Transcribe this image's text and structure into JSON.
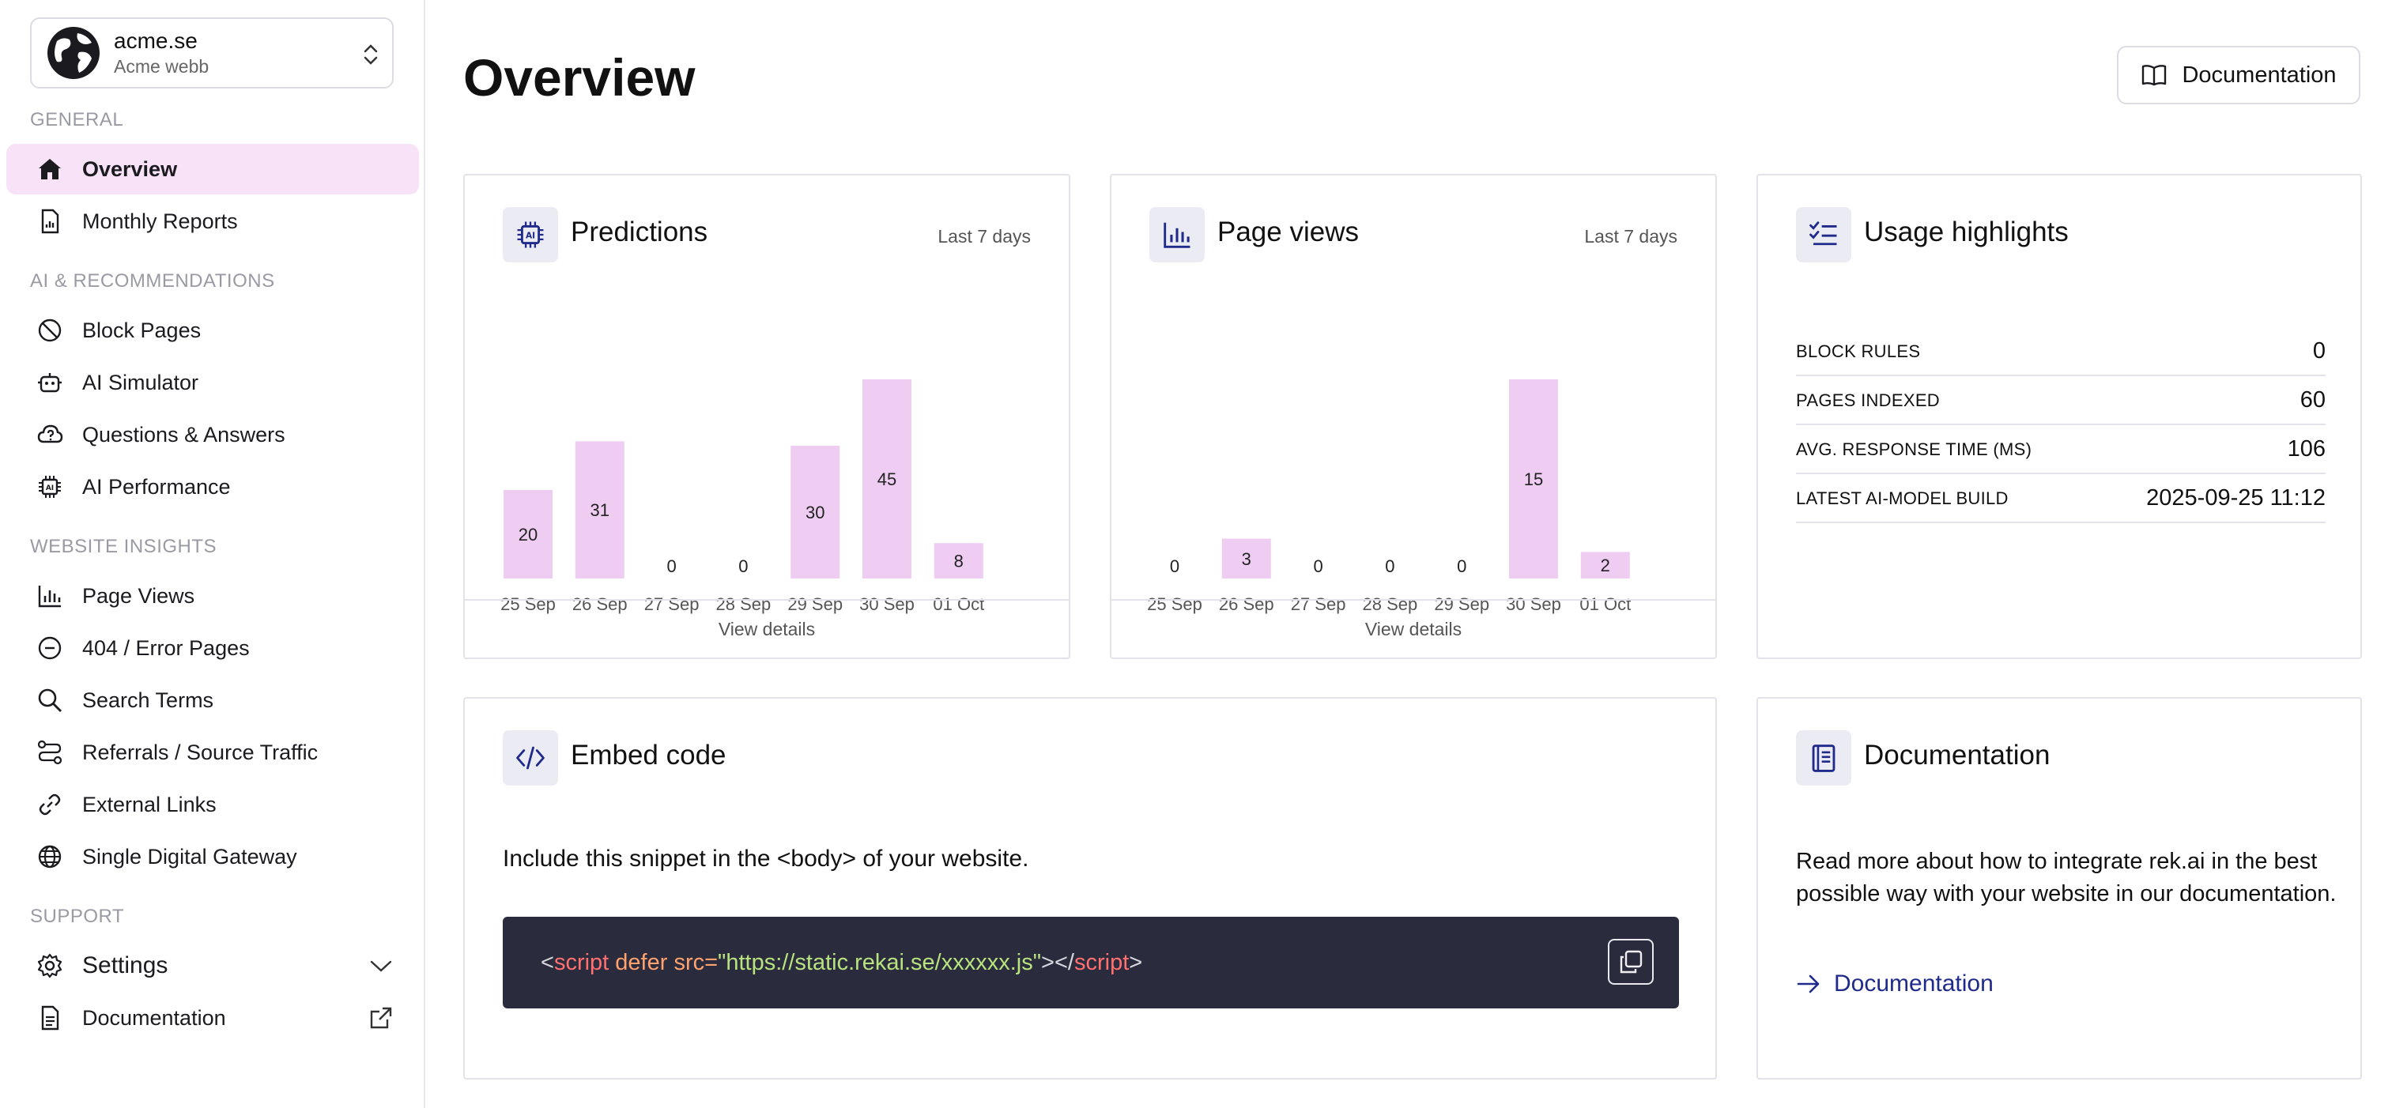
{
  "org": {
    "name": "acme.se",
    "subtitle": "Acme webb"
  },
  "sections": {
    "general": "GENERAL",
    "ai": "AI & RECOMMENDATIONS",
    "insights": "WEBSITE INSIGHTS",
    "support": "SUPPORT"
  },
  "nav": {
    "overview": "Overview",
    "monthly_reports": "Monthly Reports",
    "block_pages": "Block Pages",
    "ai_simulator": "AI Simulator",
    "qa": "Questions & Answers",
    "ai_performance": "AI Performance",
    "page_views": "Page Views",
    "error_pages": "404 / Error Pages",
    "search_terms": "Search Terms",
    "referrals": "Referrals / Source Traffic",
    "external_links": "External Links",
    "sdg": "Single Digital Gateway",
    "settings": "Settings",
    "documentation": "Documentation"
  },
  "header": {
    "title": "Overview",
    "doc_button": "Documentation"
  },
  "predictions": {
    "title": "Predictions",
    "range": "Last 7 days",
    "view_details": "View details",
    "chart_data": {
      "type": "bar",
      "categories": [
        "25 Sep",
        "26 Sep",
        "27 Sep",
        "28 Sep",
        "29 Sep",
        "30 Sep",
        "01 Oct"
      ],
      "values": [
        20,
        31,
        0,
        0,
        30,
        45,
        8
      ],
      "bar_color": "#efcdf3"
    }
  },
  "pageviews": {
    "title": "Page views",
    "range": "Last 7 days",
    "view_details": "View details",
    "chart_data": {
      "type": "bar",
      "categories": [
        "25 Sep",
        "26 Sep",
        "27 Sep",
        "28 Sep",
        "29 Sep",
        "30 Sep",
        "01 Oct"
      ],
      "values": [
        0,
        3,
        0,
        0,
        0,
        15,
        2
      ],
      "bar_color": "#efcdf3"
    }
  },
  "usage": {
    "title": "Usage highlights",
    "rows": [
      {
        "label": "BLOCK RULES",
        "value": "0"
      },
      {
        "label": "PAGES INDEXED",
        "value": "60"
      },
      {
        "label": "AVG. RESPONSE TIME (MS)",
        "value": "106"
      },
      {
        "label": "LATEST AI-MODEL BUILD",
        "value": "2025-09-25 11:12"
      }
    ]
  },
  "embed": {
    "title": "Embed code",
    "description": "Include this snippet in the <body> of your website.",
    "code": {
      "open": "<",
      "tag": "script",
      "attr": " defer src=",
      "src": "\"https://static.rekai.se/xxxxxx.js\"",
      "mid": "></",
      "close_tag": "script",
      "end": ">"
    }
  },
  "docs": {
    "title": "Documentation",
    "description": "Read more about how to integrate rek.ai in the best possible way with your website in our documentation.",
    "link": "Documentation"
  },
  "colors": {
    "accent": "#1f2a8a",
    "active_bg": "#f8e2f8",
    "code_bg": "#2a2b3c"
  }
}
